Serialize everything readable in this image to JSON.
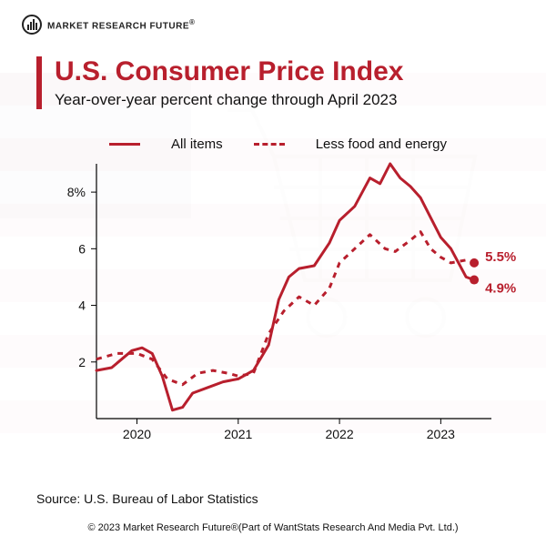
{
  "brand": {
    "name": "MARKET RESEARCH FUTURE",
    "registered_mark": "®"
  },
  "header": {
    "title": "U.S. Consumer Price Index",
    "subtitle": "Year-over-year percent change through April 2023",
    "accent_color": "#b81f2d"
  },
  "legend": {
    "items": [
      {
        "label": "All items",
        "style": "solid"
      },
      {
        "label": "Less food and energy",
        "style": "dashed"
      }
    ]
  },
  "chart": {
    "type": "line",
    "background_color": "#ffffff",
    "series_color": "#b81f2d",
    "line_width": 3,
    "axis_color": "#000000",
    "x": {
      "domain_years": [
        2019.6,
        2023.5
      ],
      "ticks": [
        2020,
        2021,
        2022,
        2023
      ],
      "tick_labels": [
        "2020",
        "2021",
        "2022",
        "2023"
      ]
    },
    "y": {
      "lim": [
        0,
        9
      ],
      "ticks": [
        2,
        4,
        6,
        8
      ],
      "tick_labels": [
        "2",
        "4",
        "6",
        "8%"
      ]
    },
    "series": {
      "all_items": {
        "style": "solid",
        "points": [
          [
            2019.6,
            1.7
          ],
          [
            2019.75,
            1.8
          ],
          [
            2019.95,
            2.4
          ],
          [
            2020.05,
            2.5
          ],
          [
            2020.15,
            2.3
          ],
          [
            2020.25,
            1.5
          ],
          [
            2020.35,
            0.3
          ],
          [
            2020.45,
            0.4
          ],
          [
            2020.55,
            0.9
          ],
          [
            2020.7,
            1.1
          ],
          [
            2020.85,
            1.3
          ],
          [
            2021.0,
            1.4
          ],
          [
            2021.15,
            1.7
          ],
          [
            2021.3,
            2.6
          ],
          [
            2021.4,
            4.2
          ],
          [
            2021.5,
            5.0
          ],
          [
            2021.6,
            5.3
          ],
          [
            2021.75,
            5.4
          ],
          [
            2021.9,
            6.2
          ],
          [
            2022.0,
            7.0
          ],
          [
            2022.15,
            7.5
          ],
          [
            2022.3,
            8.5
          ],
          [
            2022.4,
            8.3
          ],
          [
            2022.5,
            9.0
          ],
          [
            2022.6,
            8.5
          ],
          [
            2022.7,
            8.2
          ],
          [
            2022.8,
            7.8
          ],
          [
            2022.9,
            7.1
          ],
          [
            2023.0,
            6.4
          ],
          [
            2023.1,
            6.0
          ],
          [
            2023.25,
            5.0
          ],
          [
            2023.33,
            4.9
          ]
        ],
        "end_label": "4.9%"
      },
      "core": {
        "style": "dashed",
        "points": [
          [
            2019.6,
            2.1
          ],
          [
            2019.8,
            2.3
          ],
          [
            2020.0,
            2.3
          ],
          [
            2020.15,
            2.1
          ],
          [
            2020.3,
            1.4
          ],
          [
            2020.45,
            1.2
          ],
          [
            2020.6,
            1.6
          ],
          [
            2020.75,
            1.7
          ],
          [
            2020.9,
            1.6
          ],
          [
            2021.0,
            1.5
          ],
          [
            2021.15,
            1.6
          ],
          [
            2021.3,
            3.0
          ],
          [
            2021.45,
            3.8
          ],
          [
            2021.6,
            4.3
          ],
          [
            2021.75,
            4.0
          ],
          [
            2021.9,
            4.6
          ],
          [
            2022.0,
            5.5
          ],
          [
            2022.15,
            6.0
          ],
          [
            2022.3,
            6.5
          ],
          [
            2022.45,
            6.0
          ],
          [
            2022.55,
            5.9
          ],
          [
            2022.7,
            6.3
          ],
          [
            2022.8,
            6.6
          ],
          [
            2022.9,
            6.0
          ],
          [
            2023.0,
            5.7
          ],
          [
            2023.1,
            5.5
          ],
          [
            2023.25,
            5.6
          ],
          [
            2023.33,
            5.5
          ]
        ],
        "end_label": "5.5%"
      }
    }
  },
  "footer": {
    "source": "Source: U.S. Bureau of Labor Statistics",
    "copyright": "© 2023 Market Research Future®(Part of WantStats Research And Media Pvt. Ltd.)"
  },
  "background": {
    "flag_red": "#b22234",
    "flag_blue": "#3c3b6e",
    "flag_opacity": 0.12,
    "cart_stroke": "#666666",
    "cart_opacity": 0.1
  }
}
